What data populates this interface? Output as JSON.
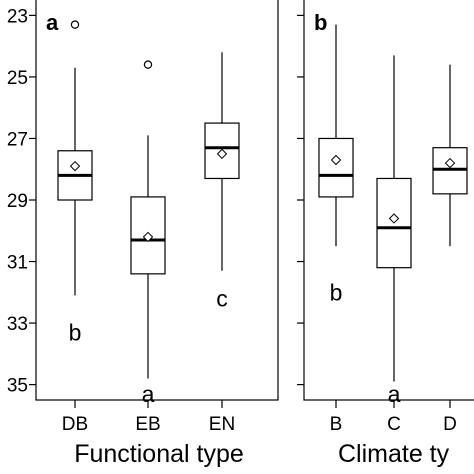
{
  "chart_data": [
    {
      "type": "box",
      "panel_label": "a",
      "xlabel": "Functional type",
      "ylabel": "",
      "ylim": [
        -35.5,
        -22.5
      ],
      "y_tick_values": [
        -23,
        -25,
        -27,
        -29,
        -31,
        -33,
        -35
      ],
      "y_tick_labels": [
        "23",
        "25",
        "27",
        "29",
        "31",
        "33",
        "35"
      ],
      "categories": [
        "DB",
        "EB",
        "EN"
      ],
      "boxes": [
        {
          "category": "DB",
          "whisker_high": -24.7,
          "q3": -27.4,
          "median": -28.2,
          "q1": -29.0,
          "whisker_low": -32.1,
          "mean": -27.9,
          "outliers": [
            -23.3
          ],
          "sig_letter": "b",
          "sig_y": -33.3
        },
        {
          "category": "EB",
          "whisker_high": -26.9,
          "q3": -28.9,
          "median": -30.3,
          "q1": -31.4,
          "whisker_low": -34.8,
          "mean": -30.2,
          "outliers": [
            -24.6
          ],
          "sig_letter": "a",
          "sig_y": -35.3
        },
        {
          "category": "EN",
          "whisker_high": -24.2,
          "q3": -26.5,
          "median": -27.3,
          "q1": -28.3,
          "whisker_low": -31.3,
          "mean": -27.5,
          "outliers": [],
          "sig_letter": "c",
          "sig_y": -32.2
        }
      ]
    },
    {
      "type": "box",
      "panel_label": "b",
      "xlabel": "Climate ty",
      "ylabel": "",
      "ylim": [
        -35.5,
        -22.5
      ],
      "categories": [
        "B",
        "C",
        "D"
      ],
      "boxes": [
        {
          "category": "B",
          "whisker_high": -23.3,
          "q3": -27.0,
          "median": -28.2,
          "q1": -28.9,
          "whisker_low": -30.5,
          "mean": -27.7,
          "outliers": [],
          "sig_letter": "b",
          "sig_y": -32.0
        },
        {
          "category": "C",
          "whisker_high": -24.3,
          "q3": -28.3,
          "median": -29.9,
          "q1": -31.2,
          "whisker_low": -34.9,
          "mean": -29.6,
          "outliers": [],
          "sig_letter": "a",
          "sig_y": -35.3
        },
        {
          "category": "D",
          "whisker_high": -24.6,
          "q3": -27.3,
          "median": -28.0,
          "q1": -28.8,
          "whisker_low": -30.5,
          "mean": -27.8,
          "outliers": [],
          "sig_letter": "",
          "sig_y": -32.0
        }
      ]
    }
  ]
}
